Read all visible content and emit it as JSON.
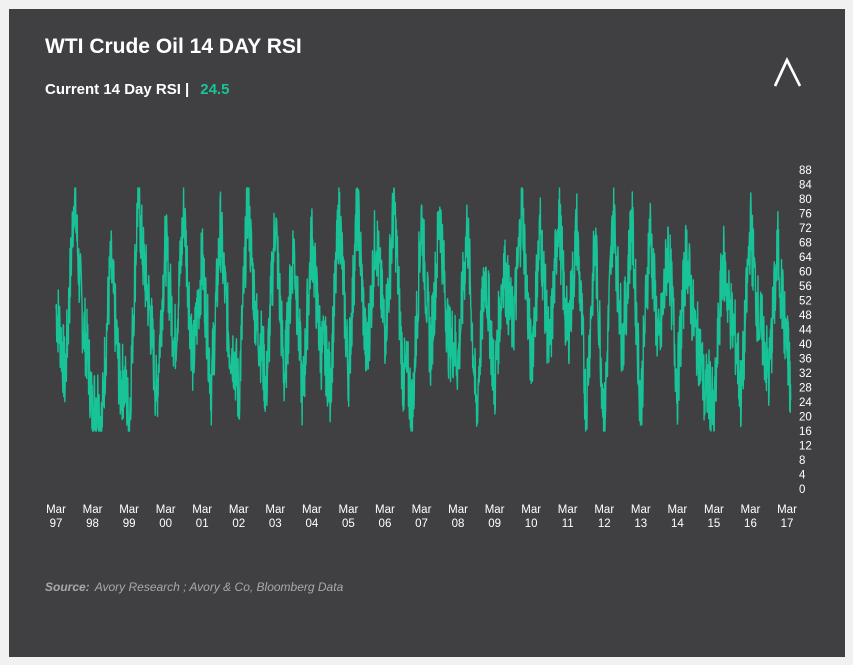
{
  "title": "WTI Crude Oil 14 DAY RSI",
  "subtitle": {
    "label": "Current 14 Day RSI |",
    "value": "24.5"
  },
  "source": {
    "label": "Source:",
    "text": "Avory Research ; Avory & Co, Bloomberg Data"
  },
  "logo_icon": "avory-chevron-logo-icon",
  "colors": {
    "background": "#404043",
    "line": "#18c497",
    "text": "#ffffff",
    "page": "#f1f1f1"
  },
  "chart_data": {
    "type": "line",
    "title": "WTI Crude Oil 14 DAY RSI",
    "xlabel": "",
    "ylabel": "",
    "ylim": [
      0,
      88
    ],
    "yticks": [
      0,
      4,
      8,
      12,
      16,
      20,
      24,
      28,
      32,
      36,
      40,
      44,
      48,
      52,
      56,
      60,
      64,
      68,
      72,
      76,
      80,
      84,
      88
    ],
    "ytick_labels": [
      "0",
      "4",
      "8",
      "12",
      "16",
      "20",
      "24",
      "28",
      "32",
      "36",
      "40",
      "44",
      "48",
      "52",
      "56",
      "60",
      "64",
      "68",
      "72",
      "76",
      "80",
      "84",
      "88"
    ],
    "y_axis_side": "right",
    "grid": false,
    "legend": "none",
    "x_tick_labels": [
      [
        "Mar",
        "97"
      ],
      [
        "Mar",
        "98"
      ],
      [
        "Mar",
        "99"
      ],
      [
        "Mar",
        "00"
      ],
      [
        "Mar",
        "01"
      ],
      [
        "Mar",
        "02"
      ],
      [
        "Mar",
        "03"
      ],
      [
        "Mar",
        "04"
      ],
      [
        "Mar",
        "05"
      ],
      [
        "Mar",
        "06"
      ],
      [
        "Mar",
        "07"
      ],
      [
        "Mar",
        "08"
      ],
      [
        "Mar",
        "09"
      ],
      [
        "Mar",
        "10"
      ],
      [
        "Mar",
        "11"
      ],
      [
        "Mar",
        "12"
      ],
      [
        "Mar",
        "13"
      ],
      [
        "Mar",
        "14"
      ],
      [
        "Mar",
        "15"
      ],
      [
        "Mar",
        "16"
      ],
      [
        "Mar",
        "17"
      ]
    ],
    "series": [
      {
        "x_start": "1997-03",
        "x_end": "2017-03",
        "x": [
          1997.0,
          1997.25,
          1997.5,
          1997.75,
          1998.0,
          1998.25,
          1998.5,
          1998.75,
          1999.0,
          1999.25,
          1999.5,
          1999.75,
          2000.0,
          2000.25,
          2000.5,
          2000.75,
          2001.0,
          2001.25,
          2001.5,
          2001.75,
          2002.0,
          2002.25,
          2002.5,
          2002.75,
          2003.0,
          2003.25,
          2003.5,
          2003.75,
          2004.0,
          2004.25,
          2004.5,
          2004.75,
          2005.0,
          2005.25,
          2005.5,
          2005.75,
          2006.0,
          2006.25,
          2006.5,
          2006.75,
          2007.0,
          2007.25,
          2007.5,
          2007.75,
          2008.0,
          2008.25,
          2008.5,
          2008.75,
          2009.0,
          2009.25,
          2009.5,
          2009.75,
          2010.0,
          2010.25,
          2010.5,
          2010.75,
          2011.0,
          2011.25,
          2011.5,
          2011.75,
          2012.0,
          2012.25,
          2012.5,
          2012.75,
          2013.0,
          2013.25,
          2013.5,
          2013.75,
          2014.0,
          2014.25,
          2014.5,
          2014.75,
          2015.0,
          2015.25,
          2015.5,
          2015.75,
          2016.0,
          2016.25,
          2016.5,
          2016.75,
          2017.0,
          2017.1
        ],
        "values": [
          50,
          30,
          83,
          45,
          20,
          17,
          62,
          28,
          18,
          83,
          55,
          25,
          68,
          40,
          78,
          35,
          63,
          28,
          72,
          40,
          25,
          81,
          44,
          27,
          75,
          30,
          68,
          24,
          70,
          38,
          28,
          78,
          32,
          80,
          35,
          72,
          44,
          80,
          30,
          20,
          76,
          38,
          78,
          40,
          35,
          73,
          20,
          60,
          28,
          62,
          45,
          80,
          35,
          72,
          37,
          78,
          42,
          72,
          22,
          68,
          17,
          78,
          40,
          75,
          22,
          73,
          38,
          68,
          28,
          66,
          42,
          25,
          18,
          64,
          46,
          24,
          73,
          45,
          30,
          66,
          38,
          24.5
        ]
      }
    ]
  }
}
